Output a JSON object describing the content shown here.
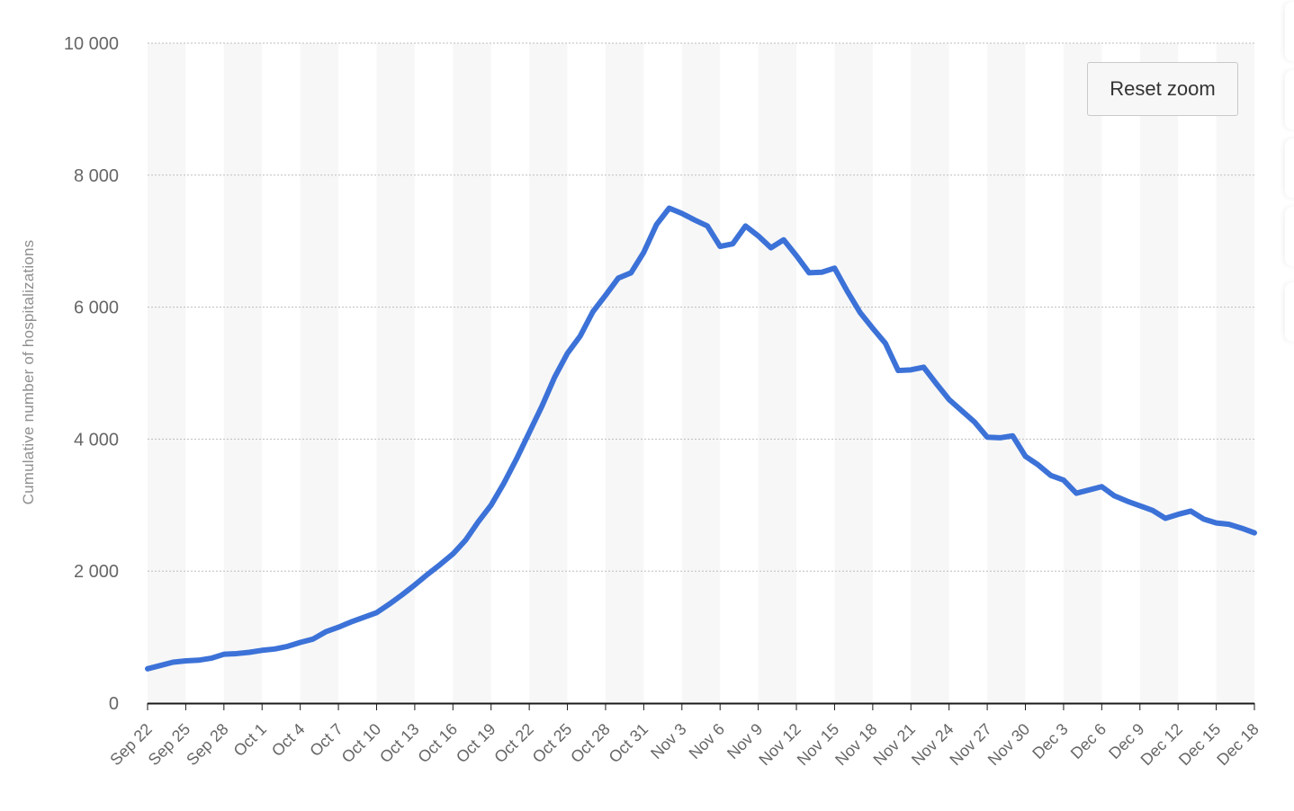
{
  "reset_zoom_label": "Reset zoom",
  "colors": {
    "line": "#3c72d8",
    "band": "#f7f7f7",
    "grid": "#bdbdbd",
    "axis": "#1a1a1a",
    "tick_text": "#666666"
  },
  "chart_data": {
    "type": "line",
    "title": "",
    "xlabel": "",
    "ylabel": "Cumulative number of hospitalizations",
    "ylim": [
      0,
      10000
    ],
    "yticks": [
      0,
      2000,
      4000,
      6000,
      8000,
      10000
    ],
    "ytick_labels": [
      "0",
      "2 000",
      "4 000",
      "6 000",
      "8 000",
      "10 000"
    ],
    "grid": true,
    "x": [
      "Sep 22",
      "Sep 23",
      "Sep 24",
      "Sep 25",
      "Sep 26",
      "Sep 27",
      "Sep 28",
      "Sep 29",
      "Sep 30",
      "Oct 1",
      "Oct 2",
      "Oct 3",
      "Oct 4",
      "Oct 5",
      "Oct 6",
      "Oct 7",
      "Oct 8",
      "Oct 9",
      "Oct 10",
      "Oct 11",
      "Oct 12",
      "Oct 13",
      "Oct 14",
      "Oct 15",
      "Oct 16",
      "Oct 17",
      "Oct 18",
      "Oct 19",
      "Oct 20",
      "Oct 21",
      "Oct 22",
      "Oct 23",
      "Oct 24",
      "Oct 25",
      "Oct 26",
      "Oct 27",
      "Oct 28",
      "Oct 29",
      "Oct 30",
      "Oct 31",
      "Nov 1",
      "Nov 2",
      "Nov 3",
      "Nov 4",
      "Nov 5",
      "Nov 6",
      "Nov 7",
      "Nov 8",
      "Nov 9",
      "Nov 10",
      "Nov 11",
      "Nov 12",
      "Nov 13",
      "Nov 14",
      "Nov 15",
      "Nov 16",
      "Nov 17",
      "Nov 18",
      "Nov 19",
      "Nov 20",
      "Nov 21",
      "Nov 22",
      "Nov 23",
      "Nov 24",
      "Nov 25",
      "Nov 26",
      "Nov 27",
      "Nov 28",
      "Nov 29",
      "Nov 30",
      "Dec 1",
      "Dec 2",
      "Dec 3",
      "Dec 4",
      "Dec 5",
      "Dec 6",
      "Dec 7",
      "Dec 8",
      "Dec 9",
      "Dec 10",
      "Dec 11",
      "Dec 12",
      "Dec 13",
      "Dec 14",
      "Dec 15",
      "Dec 16",
      "Dec 17",
      "Dec 18"
    ],
    "xtick_labels": [
      "Sep 22",
      "Sep 25",
      "Sep 28",
      "Oct 1",
      "Oct 4",
      "Oct 7",
      "Oct 10",
      "Oct 13",
      "Oct 16",
      "Oct 19",
      "Oct 22",
      "Oct 25",
      "Oct 28",
      "Oct 31",
      "Nov 3",
      "Nov 6",
      "Nov 9",
      "Nov 12",
      "Nov 15",
      "Nov 18",
      "Nov 21",
      "Nov 24",
      "Nov 27",
      "Nov 30",
      "Dec 3",
      "Dec 6",
      "Dec 9",
      "Dec 12",
      "Dec 15",
      "Dec 18"
    ],
    "series": [
      {
        "name": "",
        "values": [
          520,
          570,
          620,
          640,
          650,
          680,
          740,
          750,
          770,
          800,
          820,
          860,
          920,
          970,
          1080,
          1150,
          1230,
          1300,
          1370,
          1500,
          1640,
          1790,
          1950,
          2100,
          2260,
          2470,
          2750,
          3000,
          3330,
          3700,
          4100,
          4500,
          4940,
          5300,
          5560,
          5930,
          6180,
          6440,
          6520,
          6830,
          7250,
          7500,
          7420,
          7320,
          7230,
          6920,
          6960,
          7230,
          7080,
          6900,
          7020,
          6780,
          6520,
          6530,
          6590,
          6240,
          5920,
          5680,
          5450,
          5040,
          5050,
          5090,
          4840,
          4600,
          4430,
          4260,
          4030,
          4020,
          4050,
          3740,
          3610,
          3450,
          3380,
          3180,
          3230,
          3280,
          3140,
          3060,
          2990,
          2920,
          2800,
          2860,
          2910,
          2790,
          2730,
          2710,
          2650,
          2580
        ]
      }
    ]
  }
}
